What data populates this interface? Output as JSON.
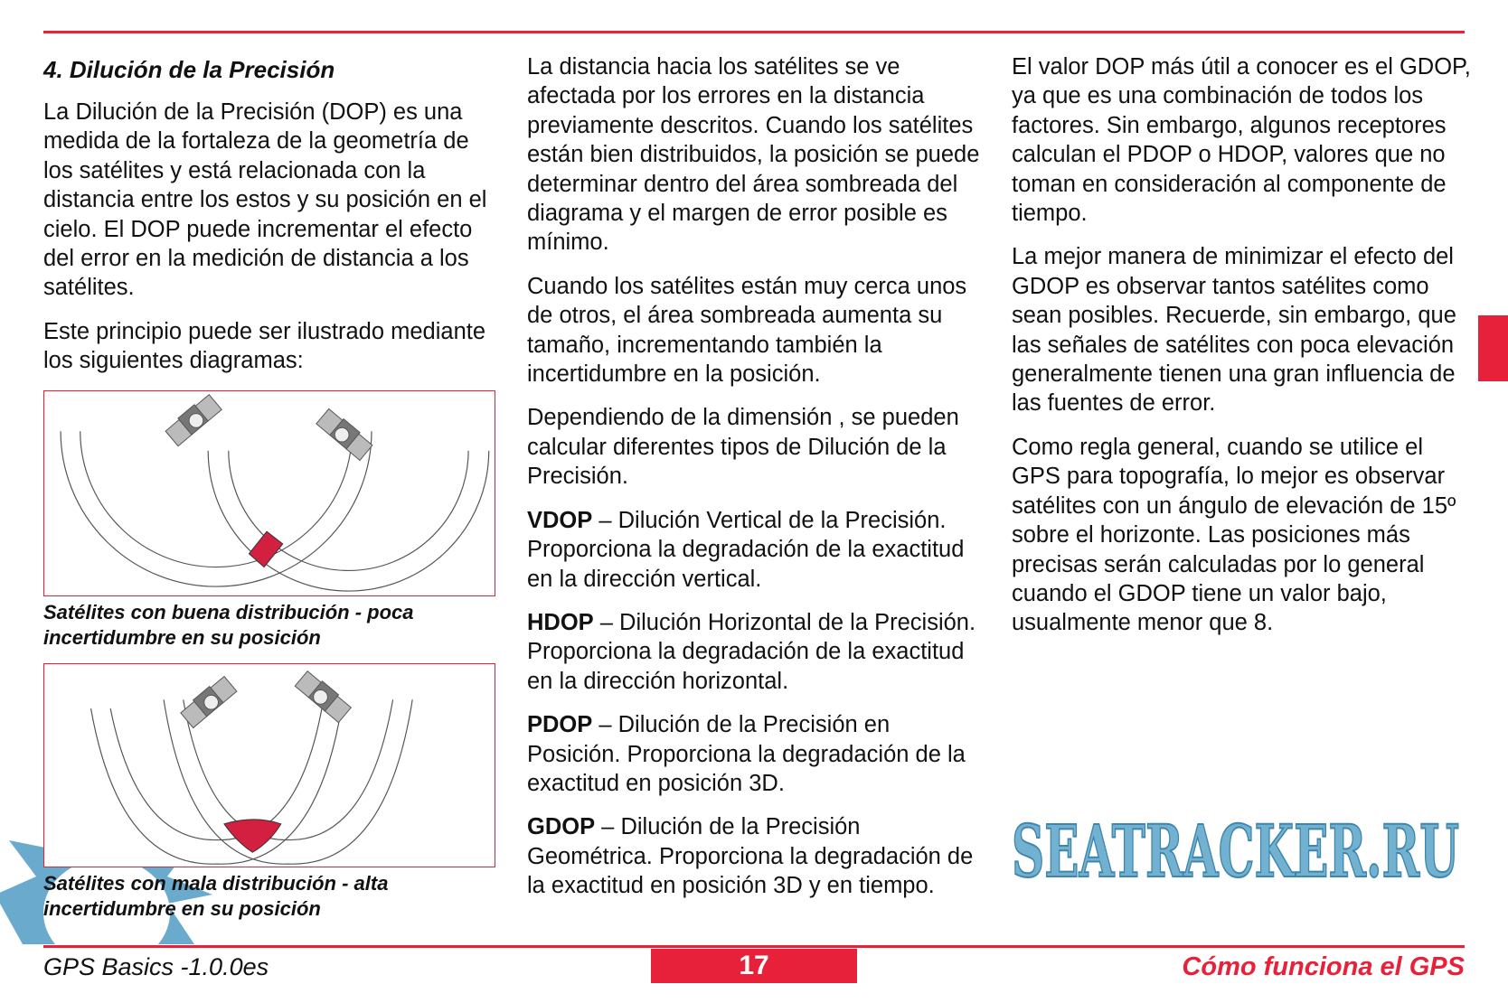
{
  "col1": {
    "heading": "4. Dilución de la Precisión",
    "p1": "La Dilución de la Precisión (DOP) es una medida de la fortaleza de la geometría de los satélites y está relacionada con la distancia entre los estos y su posición en el cielo. El DOP puede incrementar el efecto del error en la medición de distancia a los satélites.",
    "p2": "Este principio puede ser ilustrado mediante los siguientes diagramas:",
    "caption1": "Satélites con buena distribución - poca incertidumbre en su posición",
    "caption2": "Satélites con mala distribución - alta incertidumbre en su posición"
  },
  "col2": {
    "p1": "La distancia hacia los satélites se ve afectada por los errores en la distancia previamente descritos. Cuando los satélites están bien distribuidos, la posición se puede determinar dentro del área sombreada del diagrama y el margen de error posible es mínimo.",
    "p2": "Cuando los satélites están muy cerca unos de otros, el área sombreada aumenta su tamaño, incrementando también la incertidumbre en la posición.",
    "p3": "Dependiendo de la dimensión , se pueden calcular diferentes tipos de Dilución de la Precisión.",
    "defs": [
      {
        "term": "VDOP",
        "text": " – Dilución Vertical de la Precisión. Proporciona la degradación de la exactitud en la dirección vertical."
      },
      {
        "term": "HDOP",
        "text": " – Dilución Horizontal de la Precisión. Proporciona la degradación de la exactitud en la dirección horizontal."
      },
      {
        "term": "PDOP",
        "text": " – Dilución de la Precisión en Posición. Proporciona la degradación de la exactitud en posición 3D."
      },
      {
        "term": "GDOP",
        "text": " – Dilución de la Precisión Geométrica. Proporciona la degradación de la exactitud en posición 3D y en tiempo."
      }
    ]
  },
  "col3": {
    "p1": "El valor DOP más útil a conocer es el GDOP, ya que es una combinación de todos los factores. Sin embargo, algunos receptores calculan el PDOP o HDOP, valores que no toman en consideración al componente de tiempo.",
    "p2": "La mejor manera de minimizar el efecto del GDOP es observar tantos satélites como sean posibles. Recuerde, sin embargo, que las señales de satélites con poca elevación generalmente tienen una gran influencia de las fuentes de error.",
    "p3": "Como regla general, cuando se utilice el GPS para topografía, lo mejor es observar satélites con un ángulo de elevación de 15º sobre el horizonte. Las posiciones más precisas serán calculadas por lo general cuando el GDOP tiene un valor bajo, usualmente menor que 8."
  },
  "footer": {
    "left": "GPS Basics -1.0.0es",
    "page": "17",
    "right": "Cómo funciona el GPS"
  },
  "watermark": "SEATRACKER.RU",
  "colors": {
    "accent": "#e8213a",
    "watermark": "#5aa3c8",
    "area": "#d42040"
  }
}
